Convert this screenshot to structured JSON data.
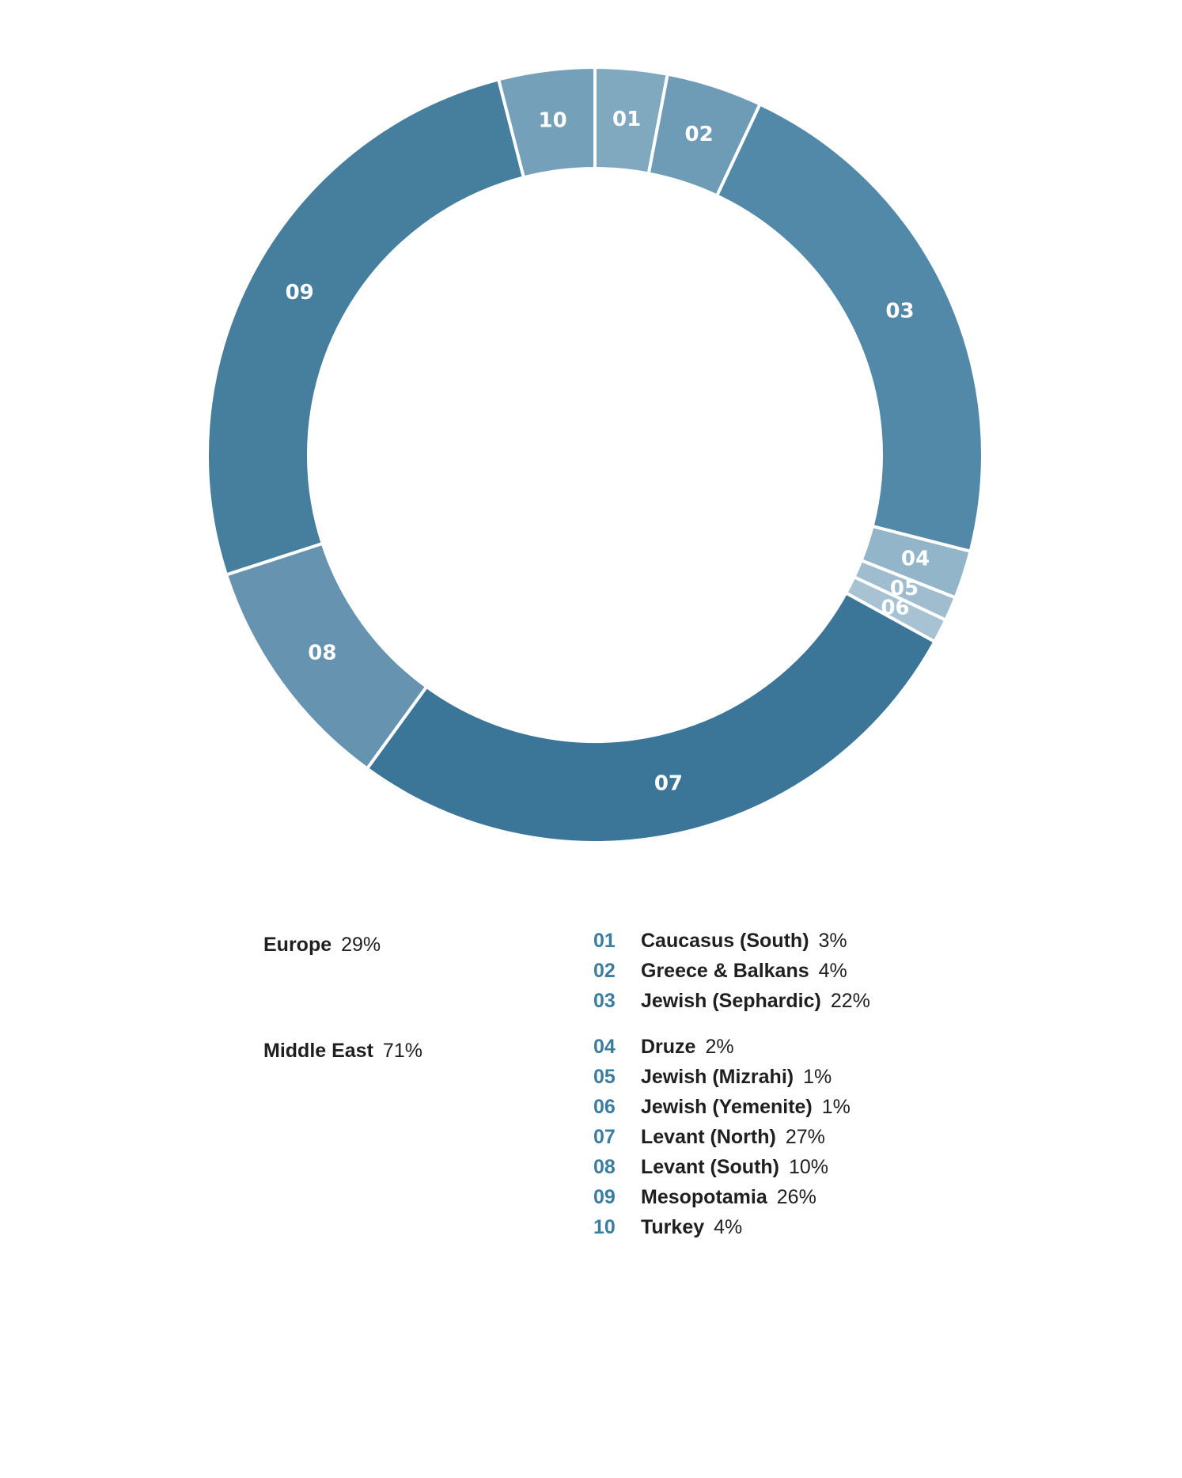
{
  "chart_data": {
    "type": "pie",
    "style": "donut",
    "slices": [
      {
        "code": "01",
        "label": "Caucasus (South)",
        "value": 3,
        "value_label": "3%",
        "color": "#80a9c0"
      },
      {
        "code": "02",
        "label": "Greece & Balkans",
        "value": 4,
        "value_label": "4%",
        "color": "#6e9cb7"
      },
      {
        "code": "03",
        "label": "Jewish (Sephardic)",
        "value": 22,
        "value_label": "22%",
        "color": "#5389a8"
      },
      {
        "code": "04",
        "label": "Druze",
        "value": 2,
        "value_label": "2%",
        "color": "#93b5c9"
      },
      {
        "code": "05",
        "label": "Jewish (Mizrahi)",
        "value": 1,
        "value_label": "1%",
        "color": "#9fbdcf"
      },
      {
        "code": "06",
        "label": "Jewish (Yemenite)",
        "value": 1,
        "value_label": "1%",
        "color": "#a6c2d3"
      },
      {
        "code": "07",
        "label": "Levant (North)",
        "value": 27,
        "value_label": "27%",
        "color": "#3b7699"
      },
      {
        "code": "08",
        "label": "Levant (South)",
        "value": 10,
        "value_label": "10%",
        "color": "#6593b0"
      },
      {
        "code": "09",
        "label": "Mesopotamia",
        "value": 26,
        "value_label": "26%",
        "color": "#467e9e"
      },
      {
        "code": "10",
        "label": "Turkey",
        "value": 4,
        "value_label": "4%",
        "color": "#74a0ba"
      }
    ],
    "groups": [
      {
        "name": "Europe",
        "value": 29,
        "value_label": "29%",
        "codes": [
          "01",
          "02",
          "03"
        ]
      },
      {
        "name": "Middle East",
        "value": 71,
        "value_label": "71%",
        "codes": [
          "04",
          "05",
          "06",
          "07",
          "08",
          "09",
          "10"
        ]
      }
    ],
    "colors": {
      "code_text": "#3b7ca1",
      "slice_label": "#ffffff",
      "separator": "#ffffff"
    }
  }
}
